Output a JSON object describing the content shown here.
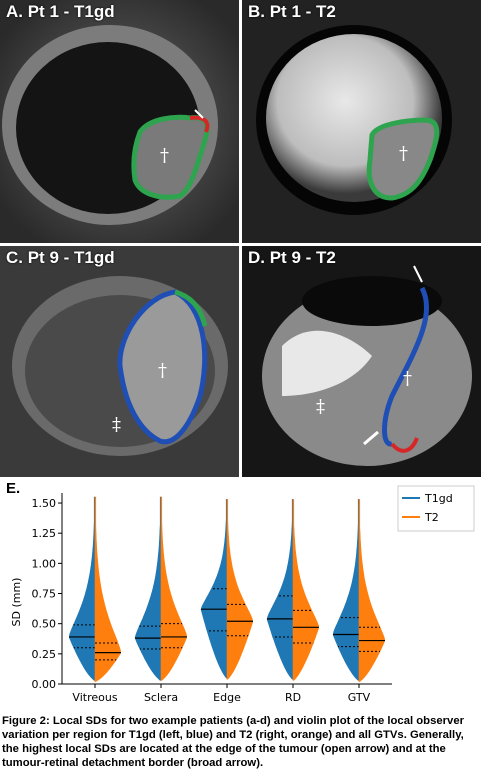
{
  "panels": [
    {
      "label": "A. Pt 1 - T1gd"
    },
    {
      "label": "B. Pt 1 - T2"
    },
    {
      "label": "C. Pt 9 - T1gd"
    },
    {
      "label": "D. Pt 9 - T2"
    }
  ],
  "marks": {
    "dagger": "†",
    "double_dagger": "‡"
  },
  "figure_label": "E.",
  "caption": "Figure 2: Local SDs for two example patients (a-d) and violin plot of the local observer variation per region for T1gd (left, blue) and T2 (right, orange) and all GTVs. Generally, the highest local SDs are located at the edge of the tumour (open arrow) and at the tumour-retinal detachment border (broad arrow).",
  "colors": {
    "t1gd": "#1f77b4",
    "t2": "#ff7f0e"
  },
  "chart_data": {
    "type": "violin",
    "categories": [
      "Vitreous",
      "Sclera",
      "Edge",
      "RD",
      "GTV"
    ],
    "ylabel": "SD (mm)",
    "ylim": [
      0.0,
      1.55
    ],
    "yticks": [
      "0.00",
      "0.25",
      "0.50",
      "0.75",
      "1.00",
      "1.25",
      "1.50"
    ],
    "legend_position": "top-right",
    "series": [
      {
        "name": "T1gd",
        "side": "left",
        "max": [
          1.55,
          1.55,
          1.53,
          1.53,
          1.53
        ],
        "min": [
          0.03,
          0.03,
          0.05,
          0.04,
          0.03
        ],
        "median": [
          0.39,
          0.38,
          0.62,
          0.54,
          0.41
        ],
        "q1": [
          0.3,
          0.29,
          0.44,
          0.39,
          0.31
        ],
        "q3": [
          0.49,
          0.48,
          0.79,
          0.73,
          0.55
        ]
      },
      {
        "name": "T2",
        "side": "right",
        "max": [
          1.55,
          1.55,
          1.53,
          1.53,
          1.53
        ],
        "min": [
          0.02,
          0.03,
          0.04,
          0.03,
          0.02
        ],
        "median": [
          0.26,
          0.39,
          0.52,
          0.47,
          0.36
        ],
        "q1": [
          0.2,
          0.3,
          0.4,
          0.34,
          0.27
        ],
        "q3": [
          0.34,
          0.5,
          0.66,
          0.61,
          0.47
        ]
      }
    ]
  }
}
